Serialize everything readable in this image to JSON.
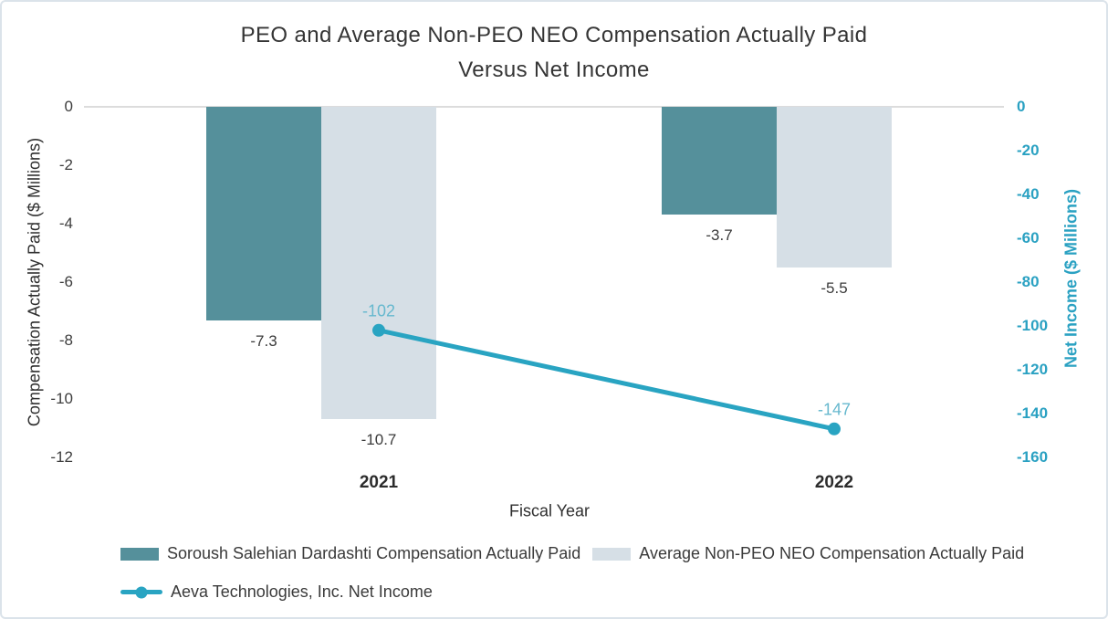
{
  "frame": {
    "background": "#ffffff",
    "border_color": "#dbe3ea"
  },
  "chart_data": {
    "type": "bar",
    "subtype": "grouped bars with overlaid line, dual y-axis",
    "title_line1": "PEO and Average Non-PEO NEO Compensation Actually Paid",
    "title_line2": "Versus Net Income",
    "xlabel": "Fiscal Year",
    "categories": [
      "2021",
      "2022"
    ],
    "series": [
      {
        "name": "Soroush Salehian Dardashti Compensation Actually Paid",
        "type": "bar",
        "axis": "left",
        "color": "#55909B",
        "values": [
          -7.3,
          -3.7
        ],
        "labels": [
          "-7.3",
          "-3.7"
        ]
      },
      {
        "name": "Average Non-PEO NEO Compensation Actually Paid",
        "type": "bar",
        "axis": "left",
        "color": "#D6DFE6",
        "values": [
          -10.7,
          -5.5
        ],
        "labels": [
          "-10.7",
          "-5.5"
        ]
      },
      {
        "name": "Aeva Technologies, Inc. Net Income",
        "type": "line",
        "axis": "right",
        "color": "#29A4C2",
        "label_color": "#66B8CE",
        "values": [
          -102,
          -147
        ],
        "labels": [
          "-102",
          "-147"
        ]
      }
    ],
    "left_axis": {
      "title": "Compensation Actually Paid ($ Millions)",
      "range": [
        0,
        -12
      ],
      "ticks": [
        "0",
        "-2",
        "-4",
        "-6",
        "-8",
        "-10",
        "-12"
      ],
      "color": "#3d3d3d"
    },
    "right_axis": {
      "title": "Net Income ($ Millions)",
      "range": [
        0,
        -160
      ],
      "ticks": [
        "0",
        "-20",
        "-40",
        "-60",
        "-80",
        "-100",
        "-120",
        "-140",
        "-160"
      ],
      "color": "#2AA1C2"
    },
    "grid": "zero baseline only",
    "legend_position": "bottom-left, two rows"
  }
}
